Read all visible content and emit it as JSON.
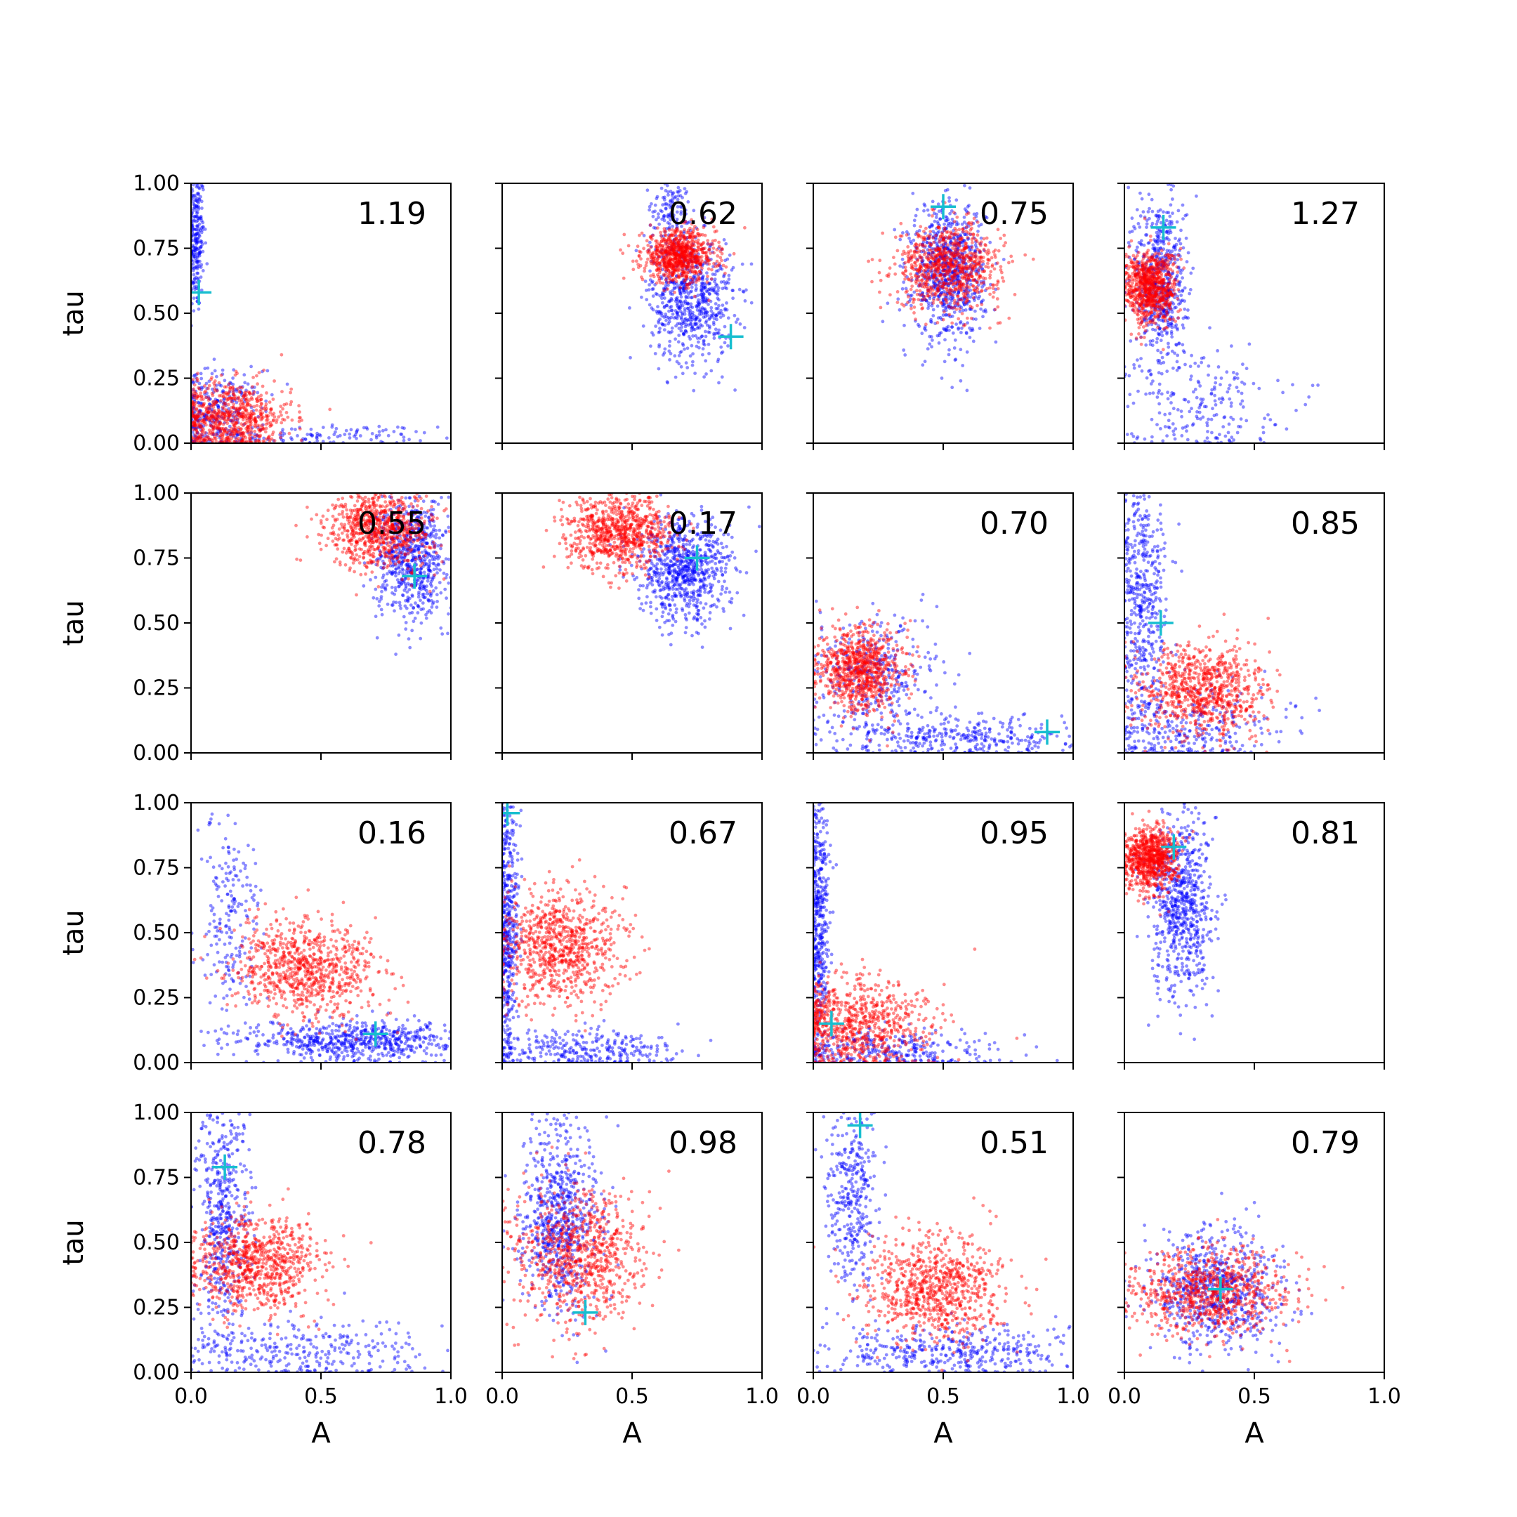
{
  "chart_data": {
    "type": "scatter",
    "layout": "4x4 grid of scatter panels, shared axes",
    "xlabel": "A",
    "ylabel": "tau",
    "xlim": [
      0.0,
      1.0
    ],
    "ylim": [
      0.0,
      1.0
    ],
    "x_ticks": [
      "0.0",
      "0.5",
      "1.0"
    ],
    "y_ticks": [
      "0.00",
      "0.25",
      "0.50",
      "0.75",
      "1.00"
    ],
    "grid": false,
    "colors": {
      "series_blue": "#0000ff",
      "series_red": "#ff0000",
      "marker": "#17becf"
    },
    "panels": [
      {
        "row": 0,
        "col": 0,
        "value": "1.19",
        "marker": [
          0.03,
          0.58
        ],
        "blue": [
          {
            "cx": 0.02,
            "cy": 0.8,
            "sx": 0.015,
            "sy": 0.15,
            "n": 260
          },
          {
            "cx": 0.1,
            "cy": 0.12,
            "sx": 0.09,
            "sy": 0.08,
            "n": 300
          },
          {
            "cx": 0.5,
            "cy": 0.03,
            "sx": 0.22,
            "sy": 0.02,
            "n": 120
          }
        ],
        "red": [
          {
            "cx": 0.15,
            "cy": 0.1,
            "sx": 0.12,
            "sy": 0.07,
            "n": 700
          }
        ]
      },
      {
        "row": 0,
        "col": 1,
        "value": "0.62",
        "marker": [
          0.88,
          0.41
        ],
        "blue": [
          {
            "cx": 0.73,
            "cy": 0.55,
            "sx": 0.08,
            "sy": 0.12,
            "n": 650
          },
          {
            "cx": 0.65,
            "cy": 0.88,
            "sx": 0.05,
            "sy": 0.08,
            "n": 150
          }
        ],
        "red": [
          {
            "cx": 0.68,
            "cy": 0.72,
            "sx": 0.07,
            "sy": 0.05,
            "n": 800
          }
        ]
      },
      {
        "row": 0,
        "col": 2,
        "value": "0.75",
        "marker": [
          0.5,
          0.91
        ],
        "blue": [
          {
            "cx": 0.52,
            "cy": 0.66,
            "sx": 0.07,
            "sy": 0.13,
            "n": 800
          }
        ],
        "red": [
          {
            "cx": 0.52,
            "cy": 0.68,
            "sx": 0.1,
            "sy": 0.08,
            "n": 800
          }
        ]
      },
      {
        "row": 0,
        "col": 3,
        "value": "1.27",
        "marker": [
          0.15,
          0.83
        ],
        "blue": [
          {
            "cx": 0.14,
            "cy": 0.62,
            "sx": 0.05,
            "sy": 0.18,
            "n": 600
          },
          {
            "cx": 0.3,
            "cy": 0.15,
            "sx": 0.15,
            "sy": 0.1,
            "n": 200
          }
        ],
        "red": [
          {
            "cx": 0.1,
            "cy": 0.6,
            "sx": 0.05,
            "sy": 0.07,
            "n": 800
          }
        ]
      },
      {
        "row": 1,
        "col": 0,
        "value": "0.55",
        "marker": [
          0.86,
          0.68
        ],
        "blue": [
          {
            "cx": 0.85,
            "cy": 0.75,
            "sx": 0.07,
            "sy": 0.12,
            "n": 700
          }
        ],
        "red": [
          {
            "cx": 0.73,
            "cy": 0.87,
            "sx": 0.1,
            "sy": 0.08,
            "n": 800
          }
        ]
      },
      {
        "row": 1,
        "col": 1,
        "value": "0.17",
        "marker": [
          0.75,
          0.75
        ],
        "blue": [
          {
            "cx": 0.7,
            "cy": 0.7,
            "sx": 0.09,
            "sy": 0.1,
            "n": 750
          }
        ],
        "red": [
          {
            "cx": 0.45,
            "cy": 0.85,
            "sx": 0.1,
            "sy": 0.07,
            "n": 800
          }
        ]
      },
      {
        "row": 1,
        "col": 2,
        "value": "0.70",
        "marker": [
          0.9,
          0.08
        ],
        "blue": [
          {
            "cx": 0.25,
            "cy": 0.3,
            "sx": 0.12,
            "sy": 0.12,
            "n": 350
          },
          {
            "cx": 0.6,
            "cy": 0.06,
            "sx": 0.25,
            "sy": 0.04,
            "n": 350
          }
        ],
        "red": [
          {
            "cx": 0.18,
            "cy": 0.32,
            "sx": 0.08,
            "sy": 0.08,
            "n": 800
          }
        ]
      },
      {
        "row": 1,
        "col": 3,
        "value": "0.85",
        "marker": [
          0.14,
          0.5
        ],
        "blue": [
          {
            "cx": 0.07,
            "cy": 0.6,
            "sx": 0.05,
            "sy": 0.25,
            "n": 500
          },
          {
            "cx": 0.25,
            "cy": 0.1,
            "sx": 0.18,
            "sy": 0.08,
            "n": 300
          }
        ],
        "red": [
          {
            "cx": 0.3,
            "cy": 0.24,
            "sx": 0.12,
            "sy": 0.09,
            "n": 800
          }
        ]
      },
      {
        "row": 2,
        "col": 0,
        "value": "0.16",
        "marker": [
          0.71,
          0.11
        ],
        "blue": [
          {
            "cx": 0.65,
            "cy": 0.08,
            "sx": 0.22,
            "sy": 0.04,
            "n": 650
          },
          {
            "cx": 0.15,
            "cy": 0.55,
            "sx": 0.06,
            "sy": 0.2,
            "n": 200
          }
        ],
        "red": [
          {
            "cx": 0.45,
            "cy": 0.36,
            "sx": 0.14,
            "sy": 0.09,
            "n": 800
          }
        ]
      },
      {
        "row": 2,
        "col": 1,
        "value": "0.67",
        "marker": [
          0.02,
          0.96
        ],
        "blue": [
          {
            "cx": 0.02,
            "cy": 0.55,
            "sx": 0.02,
            "sy": 0.25,
            "n": 450
          },
          {
            "cx": 0.3,
            "cy": 0.05,
            "sx": 0.2,
            "sy": 0.04,
            "n": 300
          }
        ],
        "red": [
          {
            "cx": 0.23,
            "cy": 0.45,
            "sx": 0.12,
            "sy": 0.11,
            "n": 800
          }
        ]
      },
      {
        "row": 2,
        "col": 2,
        "value": "0.95",
        "marker": [
          0.07,
          0.15
        ],
        "blue": [
          {
            "cx": 0.02,
            "cy": 0.55,
            "sx": 0.02,
            "sy": 0.25,
            "n": 450
          },
          {
            "cx": 0.3,
            "cy": 0.05,
            "sx": 0.22,
            "sy": 0.04,
            "n": 300
          }
        ],
        "red": [
          {
            "cx": 0.15,
            "cy": 0.15,
            "sx": 0.15,
            "sy": 0.09,
            "n": 750
          }
        ]
      },
      {
        "row": 2,
        "col": 3,
        "value": "0.81",
        "marker": [
          0.19,
          0.83
        ],
        "blue": [
          {
            "cx": 0.22,
            "cy": 0.6,
            "sx": 0.06,
            "sy": 0.18,
            "n": 700
          }
        ],
        "red": [
          {
            "cx": 0.1,
            "cy": 0.78,
            "sx": 0.05,
            "sy": 0.06,
            "n": 800
          }
        ]
      },
      {
        "row": 3,
        "col": 0,
        "value": "0.78",
        "marker": [
          0.13,
          0.79
        ],
        "blue": [
          {
            "cx": 0.12,
            "cy": 0.6,
            "sx": 0.05,
            "sy": 0.25,
            "n": 500
          },
          {
            "cx": 0.45,
            "cy": 0.08,
            "sx": 0.25,
            "sy": 0.06,
            "n": 300
          }
        ],
        "red": [
          {
            "cx": 0.25,
            "cy": 0.42,
            "sx": 0.12,
            "sy": 0.09,
            "n": 800
          }
        ]
      },
      {
        "row": 3,
        "col": 1,
        "value": "0.98",
        "marker": [
          0.32,
          0.23
        ],
        "blue": [
          {
            "cx": 0.22,
            "cy": 0.6,
            "sx": 0.08,
            "sy": 0.18,
            "n": 700
          }
        ],
        "red": [
          {
            "cx": 0.3,
            "cy": 0.45,
            "sx": 0.12,
            "sy": 0.13,
            "n": 800
          }
        ]
      },
      {
        "row": 3,
        "col": 2,
        "value": "0.51",
        "marker": [
          0.18,
          0.95
        ],
        "blue": [
          {
            "cx": 0.15,
            "cy": 0.7,
            "sx": 0.05,
            "sy": 0.18,
            "n": 350
          },
          {
            "cx": 0.55,
            "cy": 0.08,
            "sx": 0.25,
            "sy": 0.05,
            "n": 400
          }
        ],
        "red": [
          {
            "cx": 0.47,
            "cy": 0.32,
            "sx": 0.13,
            "sy": 0.1,
            "n": 800
          }
        ]
      },
      {
        "row": 3,
        "col": 3,
        "value": "0.79",
        "marker": [
          0.37,
          0.32
        ],
        "blue": [
          {
            "cx": 0.35,
            "cy": 0.32,
            "sx": 0.12,
            "sy": 0.12,
            "n": 700
          }
        ],
        "red": [
          {
            "cx": 0.33,
            "cy": 0.3,
            "sx": 0.15,
            "sy": 0.08,
            "n": 800
          }
        ]
      }
    ]
  }
}
